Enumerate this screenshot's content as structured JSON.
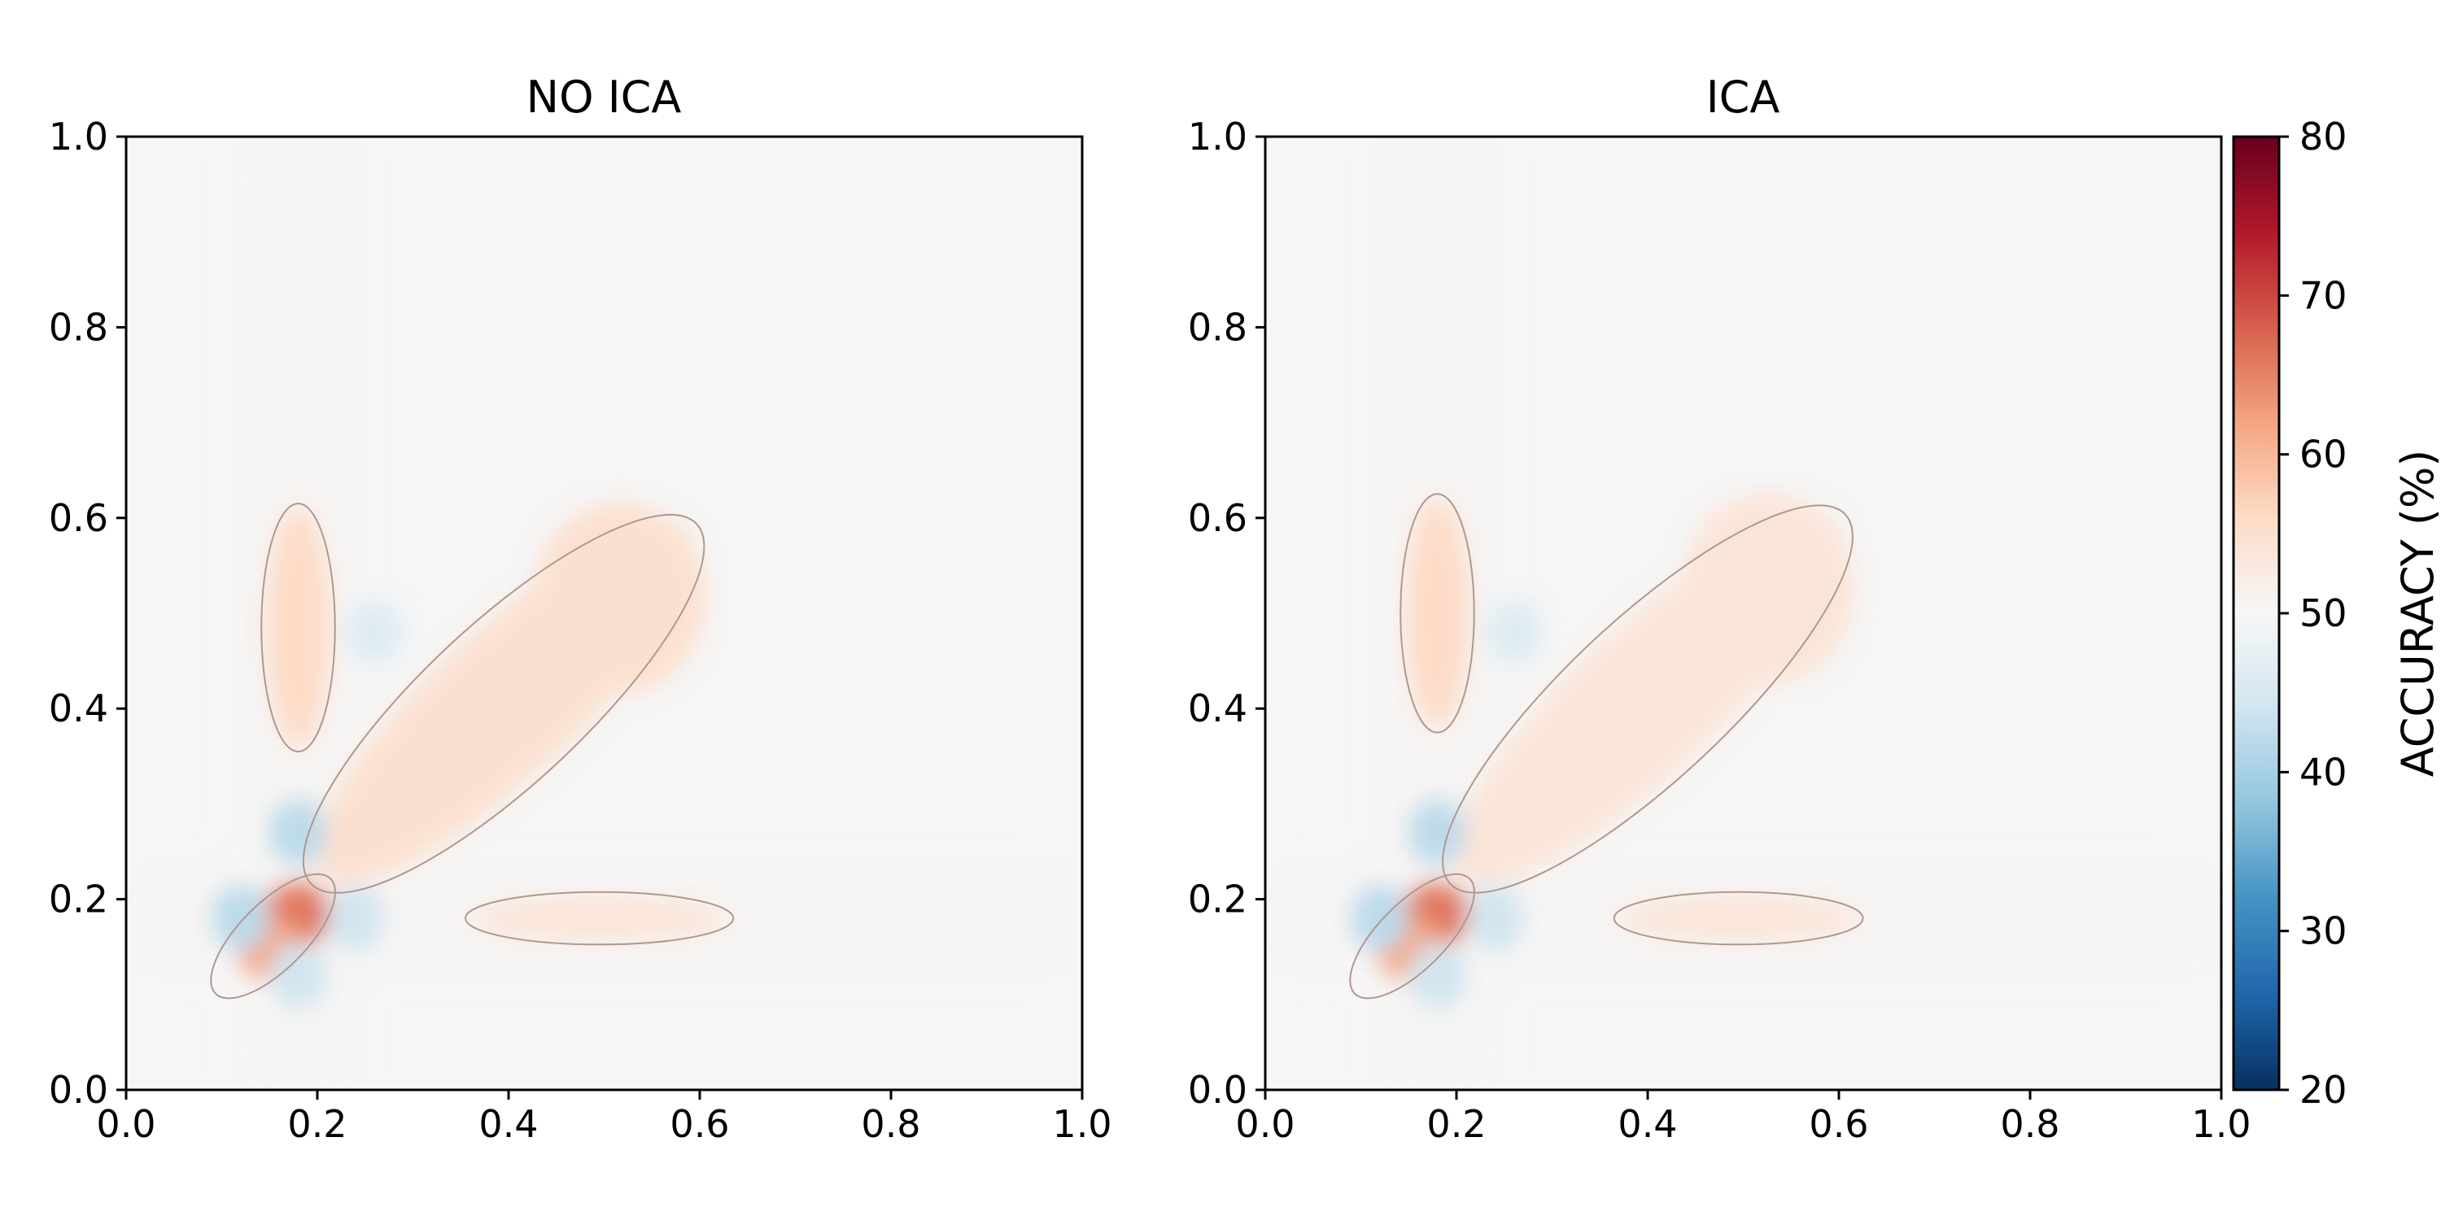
{
  "chart_data": [
    {
      "type": "heatmap",
      "title": "NO ICA",
      "xlabel": "",
      "ylabel": "",
      "xlim": [
        0.0,
        1.0
      ],
      "ylim": [
        0.0,
        1.0
      ],
      "xticks": [
        "0.0",
        "0.2",
        "0.4",
        "0.6",
        "0.8",
        "1.0"
      ],
      "yticks": [
        "0.0",
        "0.2",
        "0.4",
        "0.6",
        "0.8",
        "1.0"
      ],
      "grid": false,
      "background_value": 50,
      "contour_level": 52,
      "regions": [
        {
          "kind": "peak",
          "x": 0.175,
          "y": 0.18,
          "value": 66
        },
        {
          "kind": "peak",
          "x": 0.15,
          "y": 0.15,
          "value": 62
        },
        {
          "kind": "peak",
          "x": 0.26,
          "y": 0.27,
          "value": 60
        },
        {
          "kind": "diagonal-band",
          "from": [
            0.24,
            0.26
          ],
          "to": [
            0.55,
            0.55
          ],
          "value": 55
        },
        {
          "kind": "vertical-band",
          "x": 0.18,
          "y_range": [
            0.36,
            0.61
          ],
          "value": 56
        },
        {
          "kind": "horizontal-band",
          "y": 0.18,
          "x_range": [
            0.36,
            0.63
          ],
          "value": 54
        },
        {
          "kind": "trough",
          "x": 0.18,
          "y": 0.27,
          "value": 42
        },
        {
          "kind": "trough",
          "x": 0.12,
          "y": 0.18,
          "value": 42
        },
        {
          "kind": "trough",
          "x": 0.24,
          "y": 0.18,
          "value": 44
        },
        {
          "kind": "trough",
          "x": 0.18,
          "y": 0.12,
          "value": 44
        },
        {
          "kind": "trough",
          "x": 0.26,
          "y": 0.48,
          "value": 46
        }
      ]
    },
    {
      "type": "heatmap",
      "title": "ICA",
      "xlabel": "",
      "ylabel": "",
      "xlim": [
        0.0,
        1.0
      ],
      "ylim": [
        0.0,
        1.0
      ],
      "xticks": [
        "0.0",
        "0.2",
        "0.4",
        "0.6",
        "0.8",
        "1.0"
      ],
      "yticks": [
        "0.0",
        "0.2",
        "0.4",
        "0.6",
        "0.8",
        "1.0"
      ],
      "grid": false,
      "background_value": 50,
      "contour_level": 52,
      "regions": [
        {
          "kind": "peak",
          "x": 0.175,
          "y": 0.18,
          "value": 66
        },
        {
          "kind": "peak",
          "x": 0.15,
          "y": 0.15,
          "value": 62
        },
        {
          "kind": "peak",
          "x": 0.26,
          "y": 0.27,
          "value": 60
        },
        {
          "kind": "diagonal-band",
          "from": [
            0.24,
            0.26
          ],
          "to": [
            0.56,
            0.56
          ],
          "value": 54
        },
        {
          "kind": "vertical-band",
          "x": 0.18,
          "y_range": [
            0.38,
            0.62
          ],
          "value": 56
        },
        {
          "kind": "horizontal-band",
          "y": 0.18,
          "x_range": [
            0.37,
            0.62
          ],
          "value": 54
        },
        {
          "kind": "trough",
          "x": 0.18,
          "y": 0.27,
          "value": 42
        },
        {
          "kind": "trough",
          "x": 0.12,
          "y": 0.18,
          "value": 42
        },
        {
          "kind": "trough",
          "x": 0.24,
          "y": 0.18,
          "value": 44
        },
        {
          "kind": "trough",
          "x": 0.18,
          "y": 0.12,
          "value": 44
        },
        {
          "kind": "trough",
          "x": 0.26,
          "y": 0.48,
          "value": 46
        }
      ]
    }
  ],
  "colorbar": {
    "label": "ACCURACY (%)",
    "min": 20,
    "max": 80,
    "ticks": [
      "20",
      "30",
      "40",
      "50",
      "60",
      "70",
      "80"
    ],
    "colormap": "RdBu_r",
    "colors": [
      "#053061",
      "#2166ac",
      "#4393c3",
      "#92c5de",
      "#d1e5f0",
      "#f7f7f7",
      "#fddbc7",
      "#f4a582",
      "#d6604d",
      "#b2182b",
      "#67001f"
    ]
  }
}
